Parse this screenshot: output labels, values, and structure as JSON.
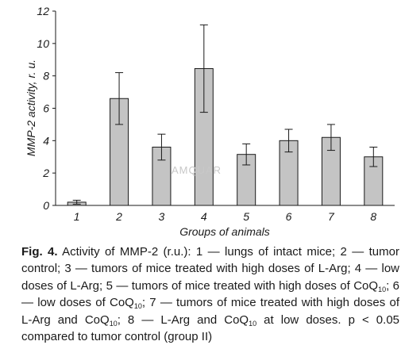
{
  "chart_data": {
    "type": "bar",
    "title": "",
    "xlabel": "Groups of animals",
    "ylabel": "MMP-2 activity, r. u.",
    "categories": [
      "1",
      "2",
      "3",
      "4",
      "5",
      "6",
      "7",
      "8"
    ],
    "values": [
      0.2,
      6.6,
      3.6,
      8.45,
      3.15,
      4.0,
      4.2,
      3.0
    ],
    "error": [
      0.12,
      1.6,
      0.8,
      2.7,
      0.65,
      0.7,
      0.8,
      0.6
    ],
    "ylim": [
      0,
      12
    ],
    "yticks": [
      "0",
      "2",
      "4",
      "6",
      "8",
      "10",
      "12"
    ],
    "bar_color": "#c4c4c4",
    "grid": false
  },
  "watermark": "AMQUAR",
  "caption": {
    "label": "Fig. 4.",
    "parts": [
      " Activity of MMP-2 (r.u.): 1 — lungs of intact mice; 2 — tumor control; 3 — tumors of mice treated with high doses of L-Arg; 4 — low doses of L-Arg; 5 — tumors of mice treated with high doses of CoQ",
      "; 6 — low doses of CoQ",
      "; 7 — tumors of mice treated with high doses of L-Arg and CoQ",
      "; 8 — L-Arg and CoQ",
      " at low doses. p < 0.05 compared to tumor control (group II)"
    ],
    "subscript": "10"
  }
}
